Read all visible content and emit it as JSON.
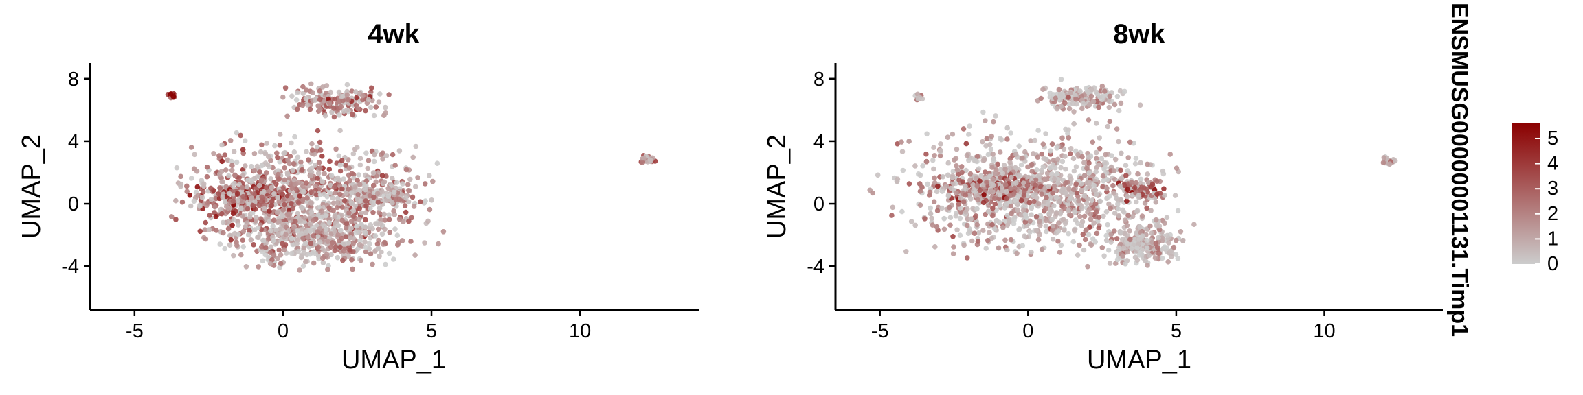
{
  "chart_data": [
    {
      "type": "scatter",
      "title": "4wk",
      "xlabel": "UMAP_1",
      "ylabel": "UMAP_2",
      "xlim": [
        -6.5,
        14
      ],
      "ylim": [
        -6.8,
        9
      ],
      "xticks": [
        -5,
        0,
        5,
        10
      ],
      "yticks": [
        -4,
        0,
        4,
        8
      ],
      "grid": false,
      "clusters": [
        {
          "cx": 0.8,
          "cy": 0.5,
          "rx": 3.6,
          "ry": 3.4,
          "n": 900,
          "expr": 1.9
        },
        {
          "cx": -1.2,
          "cy": 0.4,
          "rx": 1.8,
          "ry": 1.0,
          "n": 250,
          "expr": 3.2
        },
        {
          "cx": 1.0,
          "cy": -2.2,
          "rx": 2.6,
          "ry": 1.8,
          "n": 350,
          "expr": 1.4
        },
        {
          "cx": 1.8,
          "cy": 6.6,
          "rx": 1.5,
          "ry": 0.9,
          "n": 160,
          "expr": 2.4
        },
        {
          "cx": 3.3,
          "cy": 0.5,
          "rx": 1.0,
          "ry": 0.7,
          "n": 90,
          "expr": 1.6
        },
        {
          "cx": -3.75,
          "cy": 6.9,
          "rx": 0.12,
          "ry": 0.2,
          "n": 12,
          "expr": 4.5
        },
        {
          "cx": 12.3,
          "cy": 2.8,
          "rx": 0.25,
          "ry": 0.25,
          "n": 20,
          "expr": 2.0
        }
      ]
    },
    {
      "type": "scatter",
      "title": "8wk",
      "xlabel": "UMAP_1",
      "ylabel": "UMAP_2",
      "xlim": [
        -6.5,
        14
      ],
      "ylim": [
        -6.8,
        9
      ],
      "xticks": [
        -5,
        0,
        5,
        10
      ],
      "yticks": [
        -4,
        0,
        4,
        8
      ],
      "grid": false,
      "clusters": [
        {
          "cx": 0.3,
          "cy": 0.8,
          "rx": 4.0,
          "ry": 3.5,
          "n": 1100,
          "expr": 1.2
        },
        {
          "cx": -1.0,
          "cy": 1.0,
          "rx": 1.9,
          "ry": 0.9,
          "n": 250,
          "expr": 2.6
        },
        {
          "cx": 3.8,
          "cy": 0.9,
          "rx": 0.8,
          "ry": 0.6,
          "n": 90,
          "expr": 3.2
        },
        {
          "cx": 3.8,
          "cy": -2.6,
          "rx": 1.2,
          "ry": 1.2,
          "n": 200,
          "expr": 0.9
        },
        {
          "cx": 1.8,
          "cy": 6.8,
          "rx": 1.5,
          "ry": 0.8,
          "n": 140,
          "expr": 0.9
        },
        {
          "cx": -3.7,
          "cy": 6.8,
          "rx": 0.12,
          "ry": 0.2,
          "n": 10,
          "expr": 2.5
        },
        {
          "cx": 12.2,
          "cy": 2.7,
          "rx": 0.25,
          "ry": 0.25,
          "n": 18,
          "expr": 1.3
        }
      ]
    }
  ],
  "legend": {
    "title": "ENSMUSG00000001131.Timp1",
    "ticks": [
      0,
      1,
      2,
      3,
      4,
      5
    ],
    "min": 0,
    "max": 5.6,
    "color_low": "#cccccc",
    "color_high": "#8b0000",
    "placement": "right"
  }
}
